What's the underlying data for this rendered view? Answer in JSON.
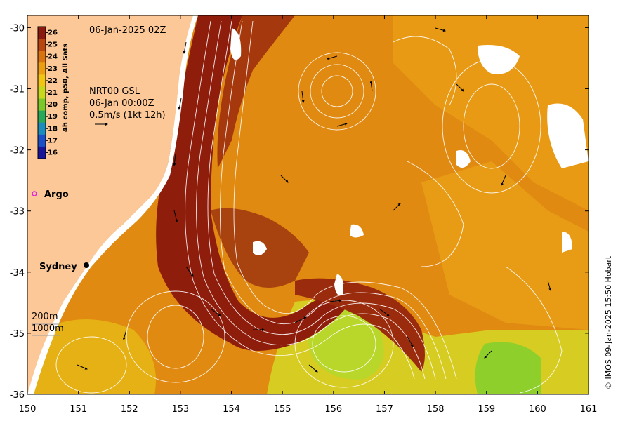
{
  "map": {
    "timestamp": "06-Jan-2025 02Z",
    "product": "NRT00 GSL",
    "product_time": "06-Jan 00:00Z",
    "vector_scale": "0.5m/s (1kt 12h)",
    "credit": "© IMOS 09-Jan-2025 15:50 Hobart",
    "lon_ticks": [
      "150",
      "151",
      "152",
      "153",
      "154",
      "155",
      "156",
      "157",
      "158",
      "159",
      "160",
      "161"
    ],
    "lat_ticks": [
      "-30",
      "-31",
      "-32",
      "-33",
      "-34",
      "-35",
      "-36"
    ],
    "lon_range": [
      150,
      161
    ],
    "lat_range": [
      -36,
      -29.8
    ]
  },
  "colorbar": {
    "title": "4h comp, p50, All Sats",
    "labels": [
      "26",
      "25",
      "24",
      "23",
      "22",
      "21",
      "20",
      "19",
      "18",
      "17",
      "16"
    ],
    "colors": [
      "#8b1a0e",
      "#b8460e",
      "#d9730f",
      "#ec9e12",
      "#f2c413",
      "#c6d71c",
      "#7cc82a",
      "#2aa85a",
      "#1c8cbc",
      "#1a4fc8",
      "#18159a"
    ]
  },
  "legend": {
    "argo_label": "Argo",
    "city_label": "Sydney",
    "depth_200": "200m",
    "depth_1000": "1000m"
  },
  "colors": {
    "land": "#fdc897",
    "current_core": "#8e1d0c",
    "warm_water": "#e08a12",
    "cool_water": "#b6d92a",
    "argo_marker": "#e020e0"
  }
}
